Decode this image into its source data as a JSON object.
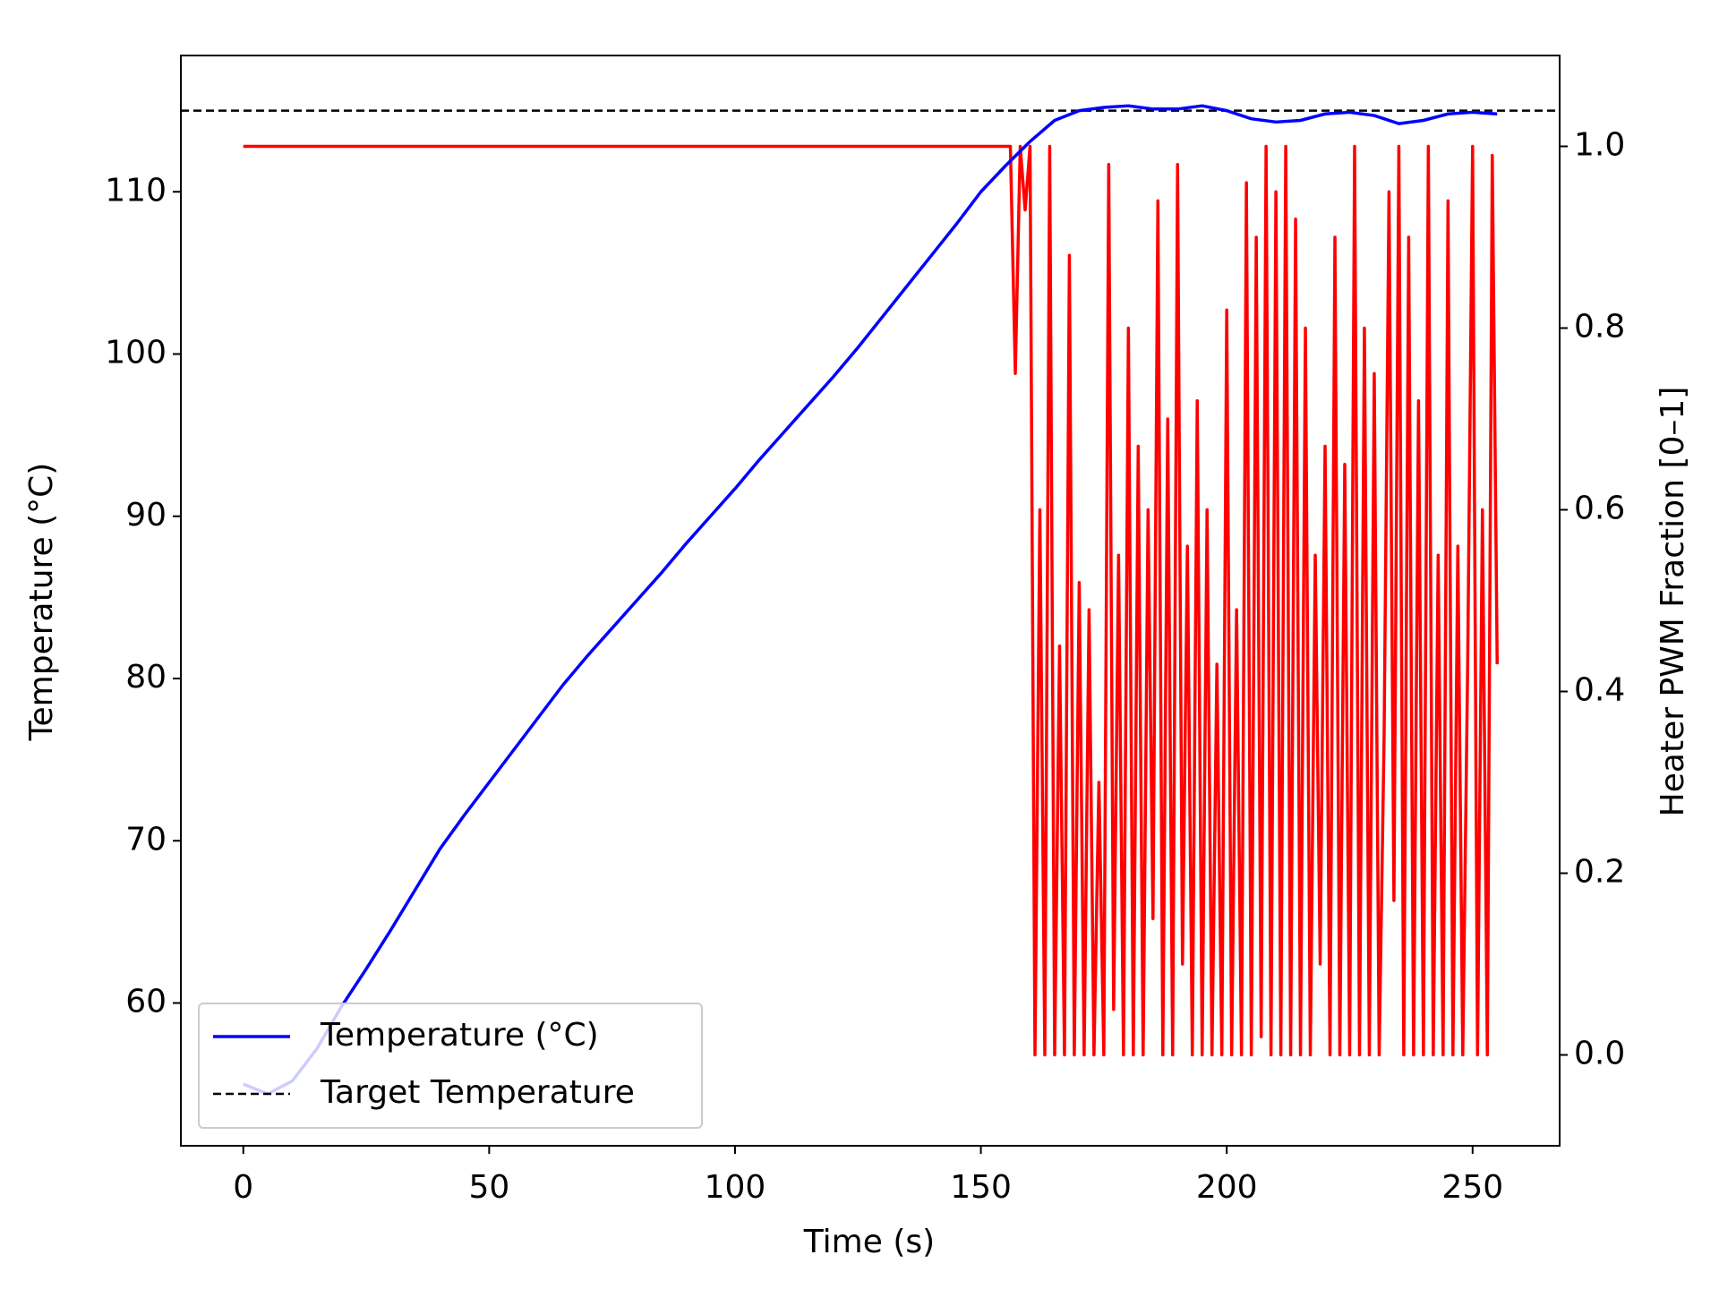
{
  "chart_data": {
    "type": "line",
    "xlabel": "Time (s)",
    "ylabel": "Temperature (°C)",
    "y2label": "Heater PWM Fraction [0–1]",
    "ylabel_color": "#0000ff",
    "y2label_color": "#ff0000",
    "xlim": [
      -12.7,
      267.7
    ],
    "ylim": [
      51.2,
      118.4
    ],
    "y2lim": [
      -0.1,
      1.1
    ],
    "xticks": [
      0,
      50,
      100,
      150,
      200,
      250
    ],
    "yticks": [
      60,
      70,
      80,
      90,
      100,
      110
    ],
    "y2ticks": [
      {
        "value": 0,
        "label": "0.0"
      },
      {
        "value": 0.2,
        "label": "0.2"
      },
      {
        "value": 0.4,
        "label": "0.4"
      },
      {
        "value": 0.6,
        "label": "0.6"
      },
      {
        "value": 0.8,
        "label": "0.8"
      },
      {
        "value": 1,
        "label": "1.0"
      }
    ],
    "legend": "lower left",
    "target": {
      "name": "Target Temperature",
      "value": 115,
      "color": "#000000",
      "dashed": true
    },
    "series": [
      {
        "name": "Temperature (°C)",
        "color": "#0000ff",
        "x": [
          0,
          5,
          10,
          15,
          20,
          25,
          30,
          35,
          40,
          45,
          50,
          55,
          60,
          65,
          70,
          75,
          80,
          85,
          90,
          95,
          100,
          105,
          110,
          115,
          120,
          125,
          130,
          135,
          140,
          145,
          150,
          155,
          160,
          165,
          170,
          175,
          180,
          185,
          190,
          195,
          200,
          205,
          210,
          215,
          220,
          225,
          230,
          235,
          240,
          245,
          250,
          255
        ],
        "values": [
          55.0,
          54.4,
          55.2,
          57.2,
          59.8,
          62.1,
          64.5,
          67.0,
          69.5,
          71.6,
          73.6,
          75.6,
          77.6,
          79.6,
          81.4,
          83.1,
          84.8,
          86.5,
          88.3,
          90.0,
          91.7,
          93.5,
          95.2,
          96.9,
          98.6,
          100.4,
          102.3,
          104.2,
          106.1,
          108.0,
          110.0,
          111.6,
          113.1,
          114.4,
          115.0,
          115.2,
          115.3,
          115.1,
          115.1,
          115.3,
          115.0,
          114.5,
          114.3,
          114.4,
          114.8,
          114.9,
          114.7,
          114.2,
          114.4,
          114.8,
          114.9,
          114.8
        ]
      },
      {
        "color": "#ff0000",
        "axis": "y2",
        "x": [
          0,
          156,
          157,
          158,
          159,
          160,
          161,
          162,
          163,
          164,
          165,
          166,
          167,
          168,
          169,
          170,
          171,
          172,
          173,
          174,
          175,
          176,
          177,
          178,
          179,
          180,
          181,
          182,
          183,
          184,
          185,
          186,
          187,
          188,
          189,
          190,
          191,
          192,
          193,
          194,
          195,
          196,
          197,
          198,
          199,
          200,
          201,
          202,
          203,
          204,
          205,
          206,
          207,
          208,
          209,
          210,
          211,
          212,
          213,
          214,
          215,
          216,
          217,
          218,
          219,
          220,
          221,
          222,
          223,
          224,
          225,
          226,
          227,
          228,
          229,
          230,
          231,
          232,
          233,
          234,
          235,
          236,
          237,
          238,
          239,
          240,
          241,
          242,
          243,
          244,
          245,
          246,
          247,
          248,
          249,
          250,
          251,
          252,
          253,
          254,
          255
        ],
        "values": [
          1.0,
          1.0,
          0.75,
          1.0,
          0.93,
          1.0,
          0.0,
          0.6,
          0.0,
          1.0,
          0.0,
          0.45,
          0.0,
          0.88,
          0.0,
          0.52,
          0.0,
          0.49,
          0.0,
          0.3,
          0.0,
          0.98,
          0.05,
          0.55,
          0.0,
          0.8,
          0.0,
          0.67,
          0.0,
          0.6,
          0.15,
          0.94,
          0.0,
          0.7,
          0.0,
          0.98,
          0.1,
          0.56,
          0.0,
          0.72,
          0.0,
          0.6,
          0.0,
          0.43,
          0.0,
          0.82,
          0.0,
          0.49,
          0.0,
          0.96,
          0.0,
          0.9,
          0.02,
          1.0,
          0.0,
          0.95,
          0.0,
          1.0,
          0.0,
          0.92,
          0.0,
          0.8,
          0.0,
          0.55,
          0.1,
          0.67,
          0.0,
          0.9,
          0.0,
          0.65,
          0.0,
          1.0,
          0.0,
          0.8,
          0.0,
          0.75,
          0.0,
          0.35,
          0.95,
          0.17,
          1.0,
          0.0,
          0.9,
          0.0,
          0.72,
          0.0,
          1.0,
          0.0,
          0.55,
          0.0,
          0.94,
          0.0,
          0.56,
          0.0,
          0.43,
          1.0,
          0.0,
          0.6,
          0.0,
          0.99,
          0.43
        ]
      }
    ]
  }
}
